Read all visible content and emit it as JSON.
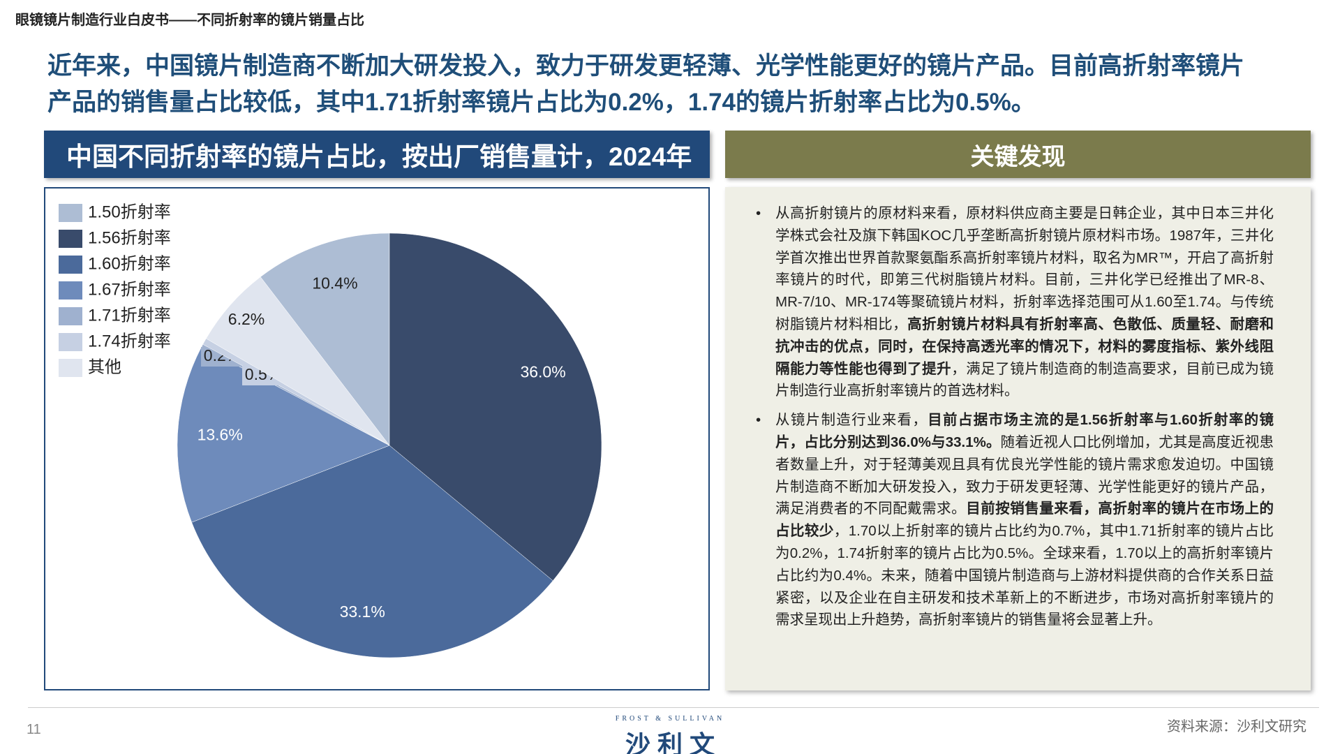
{
  "header": {
    "title": "眼镜镜片制造行业白皮书——不同折射率的镜片销量占比"
  },
  "headline": [
    "近年来，中国镜片制造商不断加大研发投入，致力于研发更轻薄、光学性能更好的镜片产品。目前高折射率镜片",
    "产品的销售量占比较低，其中1.71折射率镜片占比为0.2%，1.74的镜片折射率占比为0.5%。"
  ],
  "chart_data": {
    "type": "pie",
    "title": "中国不同折射率的镜片占比，按出厂销售量计，2024年",
    "categories": [
      "1.50折射率",
      "1.56折射率",
      "1.60折射率",
      "1.67折射率",
      "1.71折射率",
      "1.74折射率",
      "其他"
    ],
    "values": [
      10.4,
      36.0,
      33.1,
      13.6,
      0.2,
      0.5,
      6.2
    ],
    "value_labels": [
      "10.4%",
      "36.0%",
      "33.1%",
      "13.6%",
      "0.2%",
      "0.5%",
      "6.2%"
    ],
    "colors": [
      "#adbdd4",
      "#394b6b",
      "#4b6a9b",
      "#6e8bbb",
      "#9fb1cf",
      "#c6d0e3",
      "#e0e5ef"
    ],
    "legend": "top-left"
  },
  "findings": {
    "title": "关键发现",
    "bullets": [
      [
        {
          "text": "从高折射镜片的原材料来看，原材料供应商主要是日韩企业，其中日本三井化学株式会社及旗下韩国KOC几乎垄断高折射镜片原材料市场。1987年，三井化学首次推出世界首款聚氨酯系高折射率镜片材料，取名为MR™，开启了高折射率镜片的时代，即第三代树脂镜片材料。目前，三井化学已经推出了MR-8、MR-7/10、MR-174等聚硫镜片材料，折射率选择范围可从1.60至1.74。与传统树脂镜片材料相比，",
          "bold": false
        },
        {
          "text": "高折射镜片材料具有折射率高、色散低、质量轻、耐磨和抗冲击的优点，同时，在保持高透光率的情况下，材料的雾度指标、紫外线阻隔能力等性能也得到了提升",
          "bold": true
        },
        {
          "text": "，满足了镜片制造商的制造高要求，目前已成为镜片制造行业高折射率镜片的首选材料。",
          "bold": false
        }
      ],
      [
        {
          "text": "从镜片制造行业来看，",
          "bold": false
        },
        {
          "text": "目前占据市场主流的是1.56折射率与1.60折射率的镜片，占比分别达到36.0%与33.1%。",
          "bold": true
        },
        {
          "text": "随着近视人口比例增加，尤其是高度近视患者数量上升，对于轻薄美观且具有优良光学性能的镜片需求愈发迫切。中国镜片制造商不断加大研发投入，致力于研发更轻薄、光学性能更好的镜片产品，满足消费者的不同配戴需求。",
          "bold": false
        },
        {
          "text": "目前按销售量来看，高折射率的镜片在市场上的占比较少",
          "bold": true
        },
        {
          "text": "，1.70以上折射率的镜片占比约为0.7%，其中1.71折射率的镜片占比为0.2%，1.74折射率的镜片占比为0.5%。全球来看，1.70以上的高折射率镜片占比约为0.4%。未来，随着中国镜片制造商与上游材料提供商的合作关系日益紧密，以及企业在自主研发和技术革新上的不断进步，市场对高折射率镜片的需求呈现出上升趋势，高折射率镜片的销售量将会显著上升。",
          "bold": false
        }
      ]
    ]
  },
  "footer": {
    "page": "11",
    "logo_en": "FROST & SULLIVAN",
    "logo_cn": "沙 利 文",
    "source": "资料来源：沙利文研究"
  }
}
